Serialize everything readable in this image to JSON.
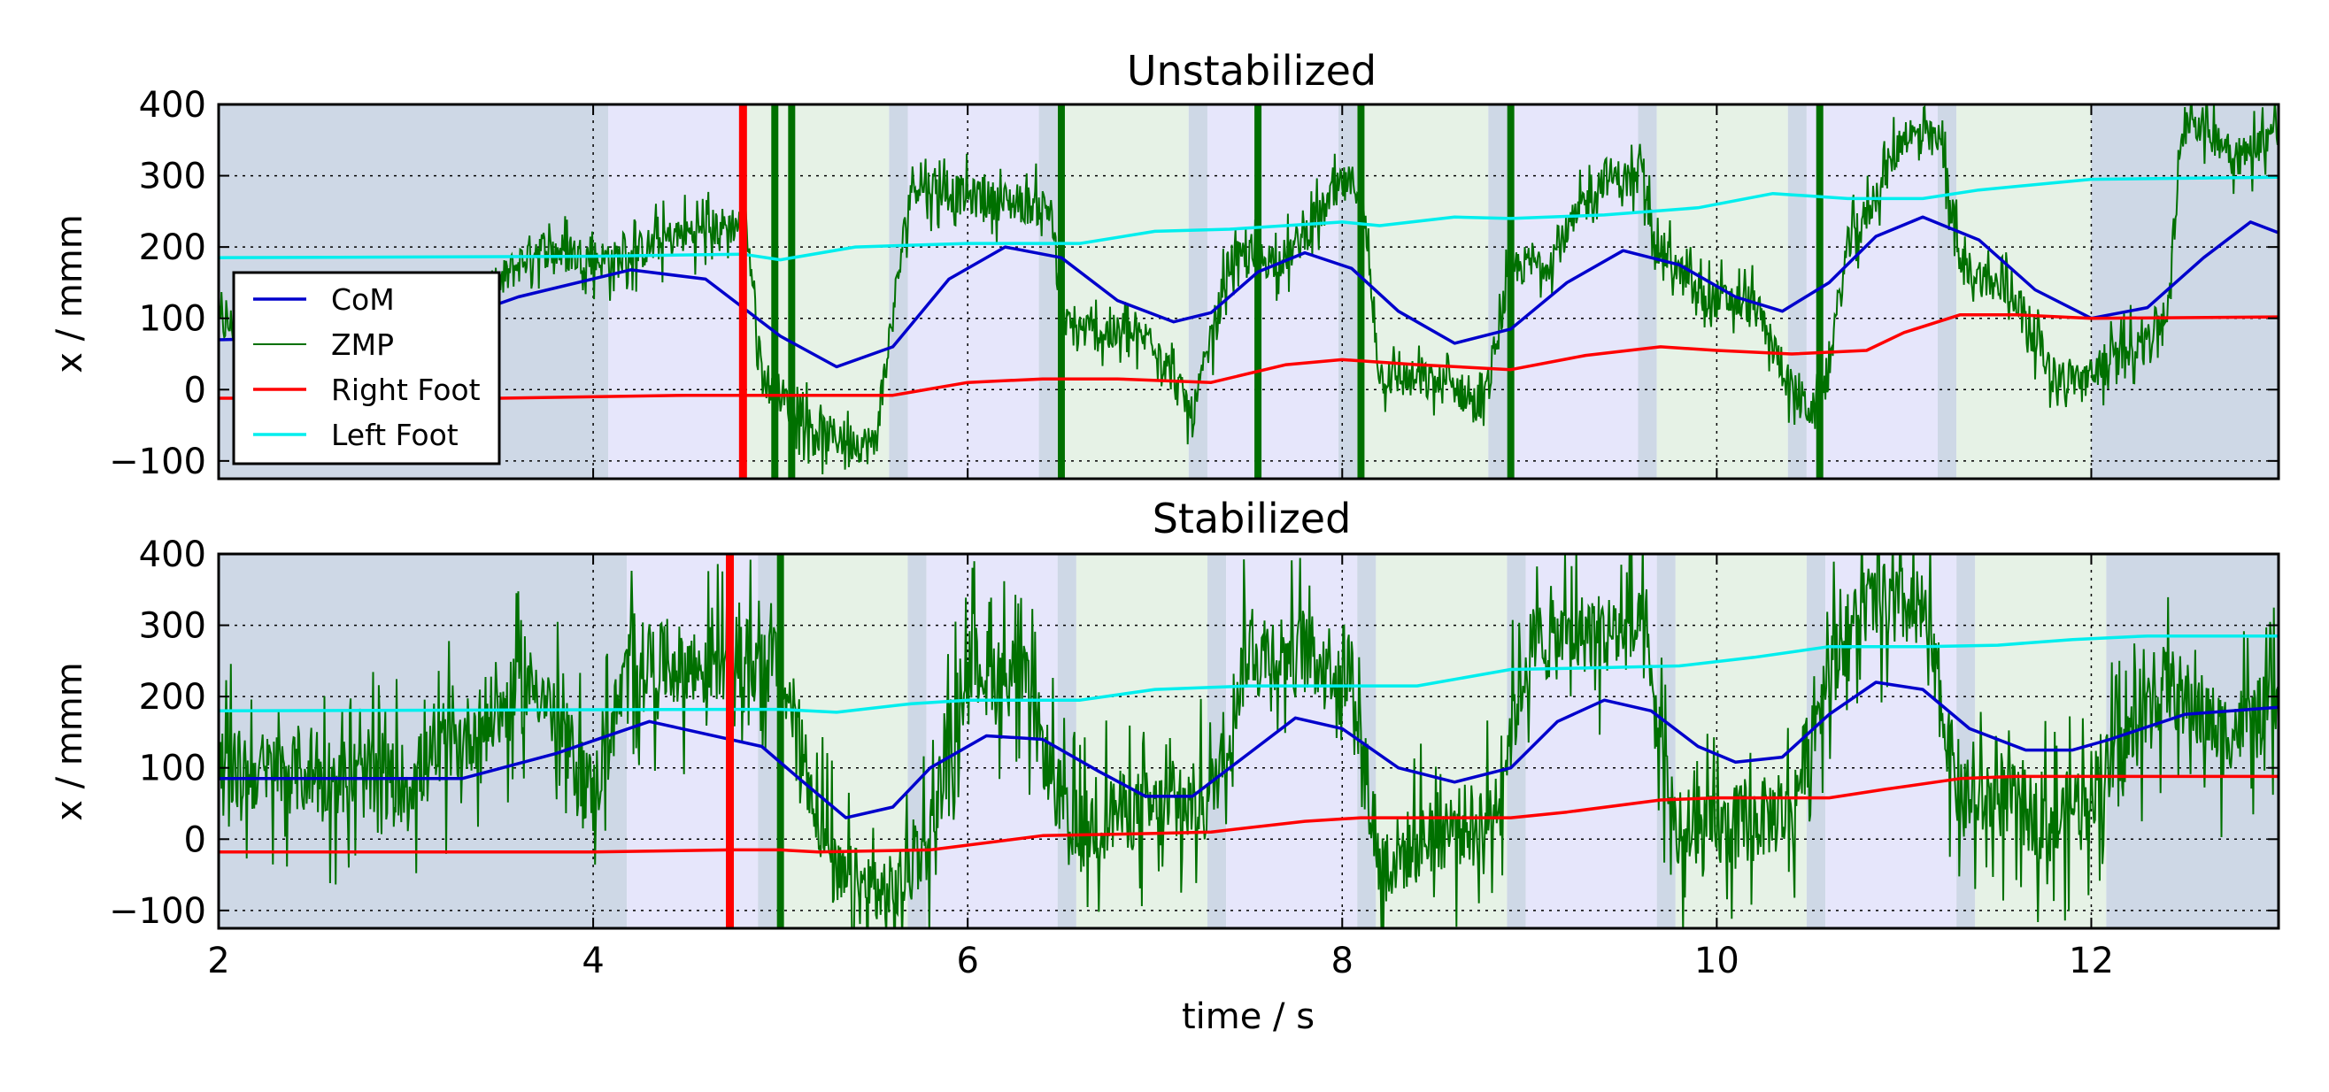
{
  "chart_data": [
    {
      "type": "line",
      "title": "Unstabilized",
      "xlabel": "",
      "ylabel": "x / mmm",
      "xlim": [
        2,
        13
      ],
      "ylim": [
        -125,
        400
      ],
      "xticks": [
        2,
        4,
        6,
        8,
        10,
        12
      ],
      "xtick_labels": [
        "2",
        "4",
        "6",
        "8",
        "10",
        "12"
      ],
      "xtick_labels_visible": false,
      "yticks": [
        -100,
        0,
        100,
        200,
        300,
        400
      ],
      "ytick_labels": [
        "−100",
        "0",
        "100",
        "200",
        "300",
        "400"
      ],
      "grid": true,
      "legend": "upper-left",
      "legend_entries": [
        "CoM",
        "ZMP",
        "Right Foot",
        "Left Foot"
      ],
      "phase_bands": [
        {
          "phase": "double",
          "start": 2.0,
          "end": 4.08
        },
        {
          "phase": "right",
          "start": 4.08,
          "end": 4.82
        },
        {
          "phase": "left",
          "start": 4.82,
          "end": 5.58
        },
        {
          "phase": "double",
          "start": 5.58,
          "end": 5.68
        },
        {
          "phase": "right",
          "start": 5.68,
          "end": 6.38
        },
        {
          "phase": "double",
          "start": 6.38,
          "end": 6.48
        },
        {
          "phase": "left",
          "start": 6.48,
          "end": 7.18
        },
        {
          "phase": "double",
          "start": 7.18,
          "end": 7.28
        },
        {
          "phase": "right",
          "start": 7.28,
          "end": 7.98
        },
        {
          "phase": "double",
          "start": 7.98,
          "end": 8.08
        },
        {
          "phase": "left",
          "start": 8.08,
          "end": 8.78
        },
        {
          "phase": "double",
          "start": 8.78,
          "end": 8.88
        },
        {
          "phase": "right",
          "start": 8.88,
          "end": 9.58
        },
        {
          "phase": "double",
          "start": 9.58,
          "end": 9.68
        },
        {
          "phase": "left",
          "start": 9.68,
          "end": 10.38
        },
        {
          "phase": "double",
          "start": 10.38,
          "end": 10.48
        },
        {
          "phase": "right",
          "start": 10.48,
          "end": 11.18
        },
        {
          "phase": "double",
          "start": 11.18,
          "end": 11.28
        },
        {
          "phase": "left",
          "start": 11.28,
          "end": 12.0
        },
        {
          "phase": "double",
          "start": 12.0,
          "end": 13.0
        }
      ],
      "phase_colors": {
        "double": "#ced8e6",
        "right": "#e6e6fb",
        "left": "#e6f2e6"
      },
      "marker_line": {
        "x": 4.8,
        "color": "#ff0000"
      },
      "dense_zmp_bars": [
        4.97,
        5.06,
        6.5,
        7.55,
        8.1,
        8.9,
        10.55
      ],
      "series": [
        {
          "name": "CoM",
          "color": "#0000cc",
          "x": [
            2.0,
            3.0,
            3.6,
            4.2,
            4.6,
            5.0,
            5.3,
            5.6,
            5.9,
            6.2,
            6.5,
            6.8,
            7.1,
            7.3,
            7.55,
            7.8,
            8.05,
            8.3,
            8.6,
            8.9,
            9.2,
            9.5,
            9.8,
            10.1,
            10.35,
            10.6,
            10.85,
            11.1,
            11.4,
            11.7,
            12.0,
            12.3,
            12.6,
            12.85,
            13.0
          ],
          "y": [
            70,
            75,
            130,
            168,
            155,
            75,
            32,
            60,
            155,
            200,
            185,
            125,
            95,
            108,
            165,
            192,
            170,
            110,
            65,
            85,
            150,
            195,
            175,
            130,
            110,
            150,
            215,
            242,
            210,
            140,
            100,
            115,
            185,
            235,
            220
          ]
        },
        {
          "name": "ZMP",
          "color": "#007000",
          "x": [
            2.0,
            3.3,
            3.7,
            4.1,
            4.5,
            4.82,
            4.9,
            5.2,
            5.5,
            5.7,
            6.0,
            6.3,
            6.45,
            6.5,
            6.7,
            7.0,
            7.2,
            7.3,
            7.4,
            7.7,
            8.0,
            8.1,
            8.2,
            8.6,
            8.75,
            8.9,
            9.1,
            9.4,
            9.6,
            9.7,
            9.9,
            10.2,
            10.4,
            10.55,
            10.7,
            10.8,
            11.0,
            11.2,
            11.3,
            11.6,
            11.8,
            12.0,
            12.2,
            12.4,
            12.5,
            12.8,
            13.0
          ],
          "y": [
            90,
            100,
            200,
            180,
            220,
            235,
            20,
            -60,
            -80,
            290,
            270,
            260,
            255,
            90,
            80,
            70,
            -40,
            70,
            180,
            185,
            285,
            290,
            20,
            5,
            -30,
            170,
            180,
            300,
            290,
            200,
            130,
            120,
            0,
            -40,
            200,
            245,
            360,
            345,
            175,
            130,
            20,
            15,
            60,
            100,
            390,
            325,
            370
          ]
        },
        {
          "name": "Right Foot",
          "color": "#ff0000",
          "x": [
            2.0,
            3.5,
            4.5,
            5.0,
            5.6,
            6.0,
            6.4,
            6.8,
            7.3,
            7.7,
            8.0,
            8.4,
            8.9,
            9.3,
            9.7,
            10.0,
            10.4,
            10.8,
            11.0,
            11.3,
            11.6,
            12.0,
            13.0
          ],
          "y": [
            -12,
            -12,
            -8,
            -8,
            -8,
            10,
            15,
            15,
            10,
            35,
            42,
            35,
            28,
            48,
            60,
            55,
            50,
            55,
            80,
            105,
            105,
            100,
            102
          ]
        },
        {
          "name": "Left Foot",
          "color": "#00eeee",
          "x": [
            2.0,
            4.0,
            4.8,
            5.0,
            5.4,
            6.0,
            6.6,
            7.0,
            7.4,
            8.0,
            8.2,
            8.6,
            8.9,
            9.4,
            9.9,
            10.3,
            10.7,
            11.1,
            11.4,
            12.0,
            13.0
          ],
          "y": [
            185,
            187,
            190,
            182,
            200,
            205,
            205,
            222,
            225,
            235,
            230,
            242,
            240,
            245,
            255,
            275,
            268,
            268,
            280,
            295,
            298
          ]
        }
      ]
    },
    {
      "type": "line",
      "title": "Stabilized",
      "xlabel": "time / s",
      "ylabel": "x / mmm",
      "xlim": [
        2,
        13
      ],
      "ylim": [
        -125,
        400
      ],
      "xticks": [
        2,
        4,
        6,
        8,
        10,
        12
      ],
      "xtick_labels": [
        "2",
        "4",
        "6",
        "8",
        "10",
        "12"
      ],
      "xtick_labels_visible": true,
      "yticks": [
        -100,
        0,
        100,
        200,
        300,
        400
      ],
      "ytick_labels": [
        "−100",
        "0",
        "100",
        "200",
        "300",
        "400"
      ],
      "grid": true,
      "legend": "none",
      "phase_bands": [
        {
          "phase": "double",
          "start": 2.0,
          "end": 4.18
        },
        {
          "phase": "right",
          "start": 4.18,
          "end": 4.88
        },
        {
          "phase": "double",
          "start": 4.88,
          "end": 4.98
        },
        {
          "phase": "left",
          "start": 4.98,
          "end": 5.68
        },
        {
          "phase": "double",
          "start": 5.68,
          "end": 5.78
        },
        {
          "phase": "right",
          "start": 5.78,
          "end": 6.48
        },
        {
          "phase": "double",
          "start": 6.48,
          "end": 6.58
        },
        {
          "phase": "left",
          "start": 6.58,
          "end": 7.28
        },
        {
          "phase": "double",
          "start": 7.28,
          "end": 7.38
        },
        {
          "phase": "right",
          "start": 7.38,
          "end": 8.08
        },
        {
          "phase": "double",
          "start": 8.08,
          "end": 8.18
        },
        {
          "phase": "left",
          "start": 8.18,
          "end": 8.88
        },
        {
          "phase": "double",
          "start": 8.88,
          "end": 8.98
        },
        {
          "phase": "right",
          "start": 8.98,
          "end": 9.68
        },
        {
          "phase": "double",
          "start": 9.68,
          "end": 9.78
        },
        {
          "phase": "left",
          "start": 9.78,
          "end": 10.48
        },
        {
          "phase": "double",
          "start": 10.48,
          "end": 10.58
        },
        {
          "phase": "right",
          "start": 10.58,
          "end": 11.28
        },
        {
          "phase": "double",
          "start": 11.28,
          "end": 11.38
        },
        {
          "phase": "left",
          "start": 11.38,
          "end": 12.08
        },
        {
          "phase": "double",
          "start": 12.08,
          "end": 13.0
        }
      ],
      "phase_colors": {
        "double": "#ced8e6",
        "right": "#e6e6fb",
        "left": "#e6f2e6"
      },
      "marker_line": {
        "x": 4.73,
        "color": "#ff0000"
      },
      "dense_zmp_bars": [
        5.0
      ],
      "series": [
        {
          "name": "CoM",
          "color": "#0000cc",
          "x": [
            2.0,
            3.3,
            3.8,
            4.3,
            4.9,
            5.1,
            5.35,
            5.6,
            5.8,
            6.1,
            6.4,
            6.7,
            6.95,
            7.2,
            7.5,
            7.75,
            8.0,
            8.3,
            8.6,
            8.9,
            9.15,
            9.4,
            9.65,
            9.9,
            10.1,
            10.35,
            10.6,
            10.85,
            11.1,
            11.35,
            11.65,
            11.9,
            12.1,
            12.5,
            13.0
          ],
          "y": [
            85,
            85,
            120,
            165,
            130,
            85,
            30,
            45,
            100,
            145,
            140,
            95,
            60,
            60,
            120,
            170,
            155,
            100,
            80,
            100,
            165,
            195,
            180,
            130,
            108,
            115,
            175,
            220,
            210,
            155,
            125,
            125,
            140,
            175,
            185
          ]
        },
        {
          "name": "ZMP",
          "color": "#007000",
          "x": [
            2.0,
            3.0,
            3.7,
            4.0,
            4.2,
            4.6,
            4.75,
            5.0,
            5.3,
            5.6,
            5.8,
            6.0,
            6.3,
            6.55,
            6.8,
            7.1,
            7.3,
            7.5,
            7.8,
            8.05,
            8.2,
            8.5,
            8.8,
            9.0,
            9.3,
            9.6,
            9.8,
            10.1,
            10.4,
            10.6,
            10.8,
            11.1,
            11.3,
            11.5,
            11.8,
            12.1,
            12.4,
            12.7,
            13.0
          ],
          "y": [
            100,
            80,
            220,
            60,
            250,
            240,
            260,
            240,
            -60,
            -80,
            10,
            250,
            220,
            0,
            40,
            40,
            60,
            270,
            260,
            240,
            -40,
            10,
            30,
            270,
            290,
            290,
            -10,
            20,
            40,
            250,
            330,
            320,
            50,
            60,
            20,
            100,
            220,
            150,
            180
          ]
        },
        {
          "name": "Right Foot",
          "color": "#ff0000",
          "x": [
            2.0,
            4.0,
            4.73,
            5.0,
            5.2,
            5.8,
            6.4,
            7.0,
            7.3,
            7.8,
            8.1,
            8.9,
            9.2,
            9.7,
            10.0,
            10.6,
            10.9,
            11.3,
            11.6,
            12.0,
            13.0
          ],
          "y": [
            -18,
            -18,
            -15,
            -15,
            -18,
            -15,
            5,
            8,
            10,
            25,
            30,
            30,
            38,
            55,
            58,
            58,
            70,
            85,
            88,
            88,
            88
          ]
        },
        {
          "name": "Left Foot",
          "color": "#00eeee",
          "x": [
            2.0,
            4.73,
            5.0,
            5.3,
            5.7,
            6.0,
            6.6,
            7.0,
            7.5,
            8.0,
            8.4,
            8.9,
            9.3,
            9.8,
            10.2,
            10.6,
            11.1,
            11.5,
            11.9,
            12.3,
            13.0
          ],
          "y": [
            180,
            182,
            182,
            178,
            190,
            195,
            195,
            210,
            215,
            215,
            215,
            238,
            240,
            243,
            255,
            270,
            270,
            272,
            280,
            285,
            285
          ]
        }
      ]
    }
  ]
}
